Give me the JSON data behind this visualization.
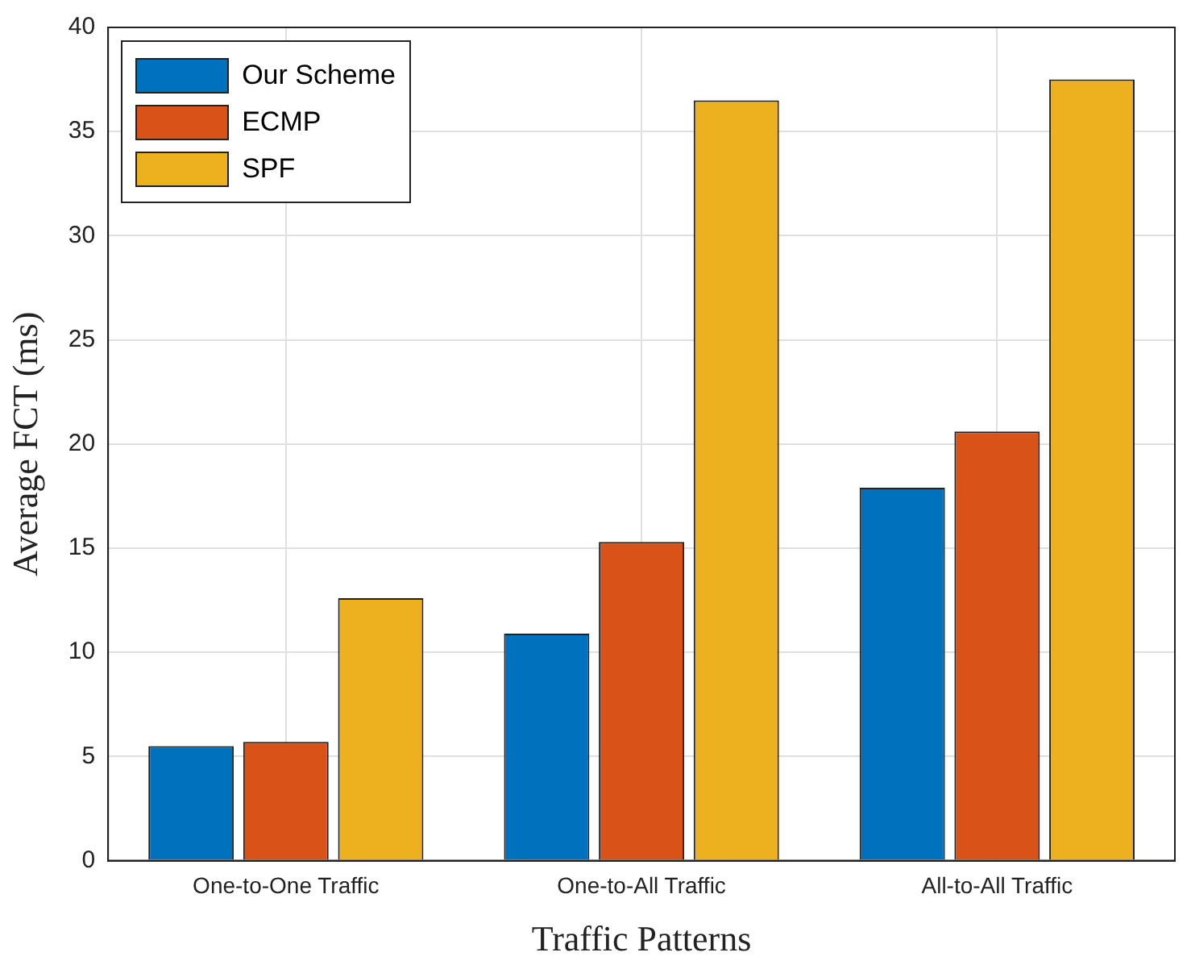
{
  "chart_data": {
    "type": "bar",
    "xlabel": "Traffic Patterns",
    "ylabel": "Average FCT (ms)",
    "categories": [
      "One-to-One Traffic",
      "One-to-All Traffic",
      "All-to-All Traffic"
    ],
    "series": [
      {
        "name": "Our Scheme",
        "color": "#0072bd",
        "values": [
          5.5,
          10.9,
          17.9
        ]
      },
      {
        "name": "ECMP",
        "color": "#d95319",
        "values": [
          5.7,
          15.3,
          20.6
        ]
      },
      {
        "name": "SPF",
        "color": "#edb120",
        "values": [
          12.6,
          36.5,
          37.5
        ]
      }
    ],
    "ylim": [
      0,
      40
    ],
    "yticks": [
      0,
      5,
      10,
      15,
      20,
      25,
      30,
      35,
      40
    ],
    "grid": true,
    "legend": "top left"
  }
}
